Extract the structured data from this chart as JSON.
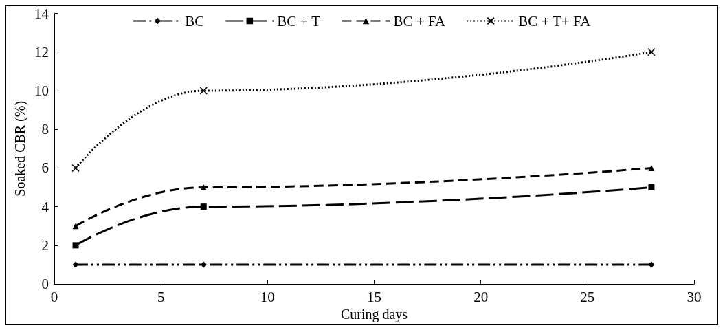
{
  "chart_data": {
    "type": "line",
    "xlabel": "Curing days",
    "ylabel": "Soaked CBR (%)",
    "x": [
      1,
      7,
      28
    ],
    "series": [
      {
        "name": "BC",
        "color": "#000000",
        "values": [
          1,
          1,
          1
        ],
        "marker": "diamond",
        "line_style": "dashdotdot"
      },
      {
        "name": "BC + T",
        "color": "#000000",
        "values": [
          2,
          4,
          5
        ],
        "marker": "square",
        "line_style": "longdash"
      },
      {
        "name": "BC + FA",
        "color": "#000000",
        "values": [
          3,
          5,
          6
        ],
        "marker": "triangle",
        "line_style": "dashed"
      },
      {
        "name": "BC + T+ FA",
        "color": "#000000",
        "values": [
          6,
          10,
          12
        ],
        "marker": "cross",
        "line_style": "dotted"
      }
    ],
    "xlim": [
      0,
      30
    ],
    "xticks": [
      0,
      5,
      10,
      15,
      20,
      25,
      30
    ],
    "ylim": [
      0,
      14
    ],
    "yticks": [
      0,
      2,
      4,
      6,
      8,
      10,
      12,
      14
    ],
    "grid": false,
    "legend": "top"
  }
}
